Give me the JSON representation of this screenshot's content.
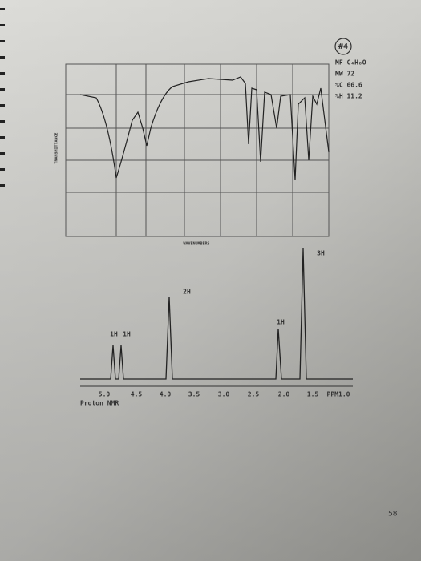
{
  "page_label": "#4",
  "formula": {
    "mf": "MF C₄H₈O",
    "mw": "MW 72",
    "c": "%C 66.6",
    "h": "%H 11.2"
  },
  "ir": {
    "y_label": "TRANSMITTANCE",
    "x_label": "WAVENUMBERS"
  },
  "nmr": {
    "integrations": [
      "1H",
      "1H",
      "2H",
      "1H",
      "3H"
    ],
    "axis": [
      "5.0",
      "4.5",
      "4.0",
      "3.5",
      "3.0",
      "2.5",
      "2.0",
      "1.5",
      "PPM1.0"
    ],
    "title": "Proton NMR"
  },
  "page_number": "58"
}
